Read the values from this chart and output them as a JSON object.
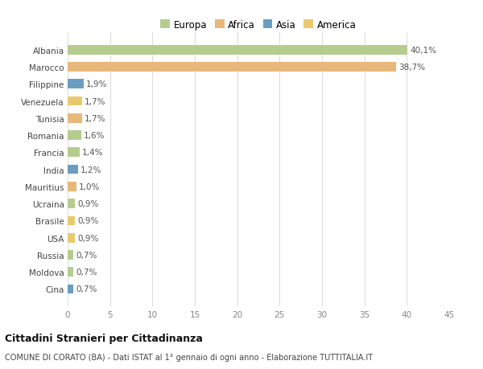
{
  "categories": [
    "Cina",
    "Moldova",
    "Russia",
    "USA",
    "Brasile",
    "Ucraina",
    "Mauritius",
    "India",
    "Francia",
    "Romania",
    "Tunisia",
    "Venezuela",
    "Filippine",
    "Marocco",
    "Albania"
  ],
  "values": [
    0.7,
    0.7,
    0.7,
    0.9,
    0.9,
    0.9,
    1.0,
    1.2,
    1.4,
    1.6,
    1.7,
    1.7,
    1.9,
    38.7,
    40.1
  ],
  "labels": [
    "0,7%",
    "0,7%",
    "0,7%",
    "0,9%",
    "0,9%",
    "0,9%",
    "1,0%",
    "1,2%",
    "1,4%",
    "1,6%",
    "1,7%",
    "1,7%",
    "1,9%",
    "38,7%",
    "40,1%"
  ],
  "colors": [
    "#6b9dc2",
    "#b5cc8e",
    "#b5cc8e",
    "#e8c96e",
    "#e8c96e",
    "#b5cc8e",
    "#e8b87a",
    "#6b9dc2",
    "#b5cc8e",
    "#b5cc8e",
    "#e8b87a",
    "#e8c96e",
    "#6b9dc2",
    "#e8b87a",
    "#b5cc8e"
  ],
  "legend_labels": [
    "Europa",
    "Africa",
    "Asia",
    "America"
  ],
  "legend_colors": [
    "#b5cc8e",
    "#e8b87a",
    "#6b9dc2",
    "#e8c96e"
  ],
  "title": "Cittadini Stranieri per Cittadinanza",
  "subtitle": "COMUNE DI CORATO (BA) - Dati ISTAT al 1° gennaio di ogni anno - Elaborazione TUTTITALIA.IT",
  "xlim": [
    0,
    45
  ],
  "xticks": [
    0,
    5,
    10,
    15,
    20,
    25,
    30,
    35,
    40,
    45
  ],
  "bg_color": "#ffffff",
  "grid_color": "#dddddd"
}
